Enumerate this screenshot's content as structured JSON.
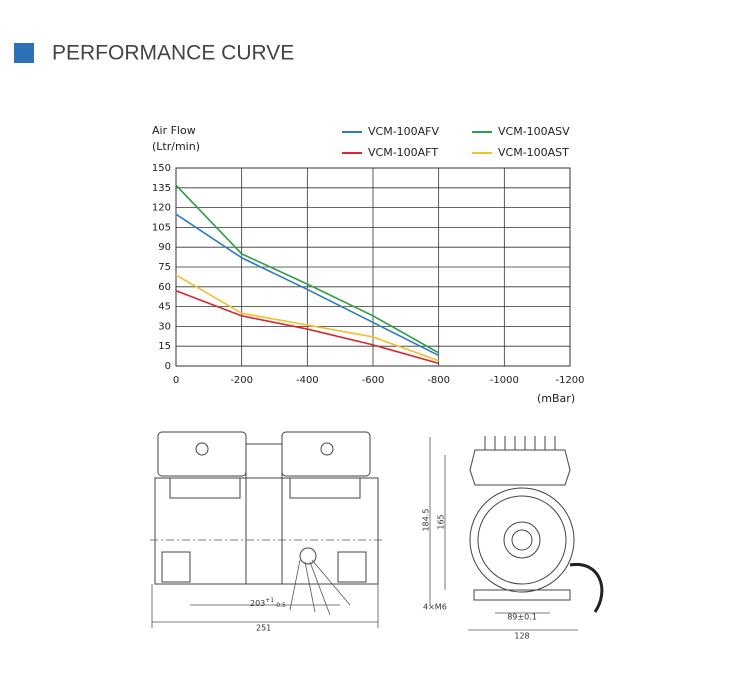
{
  "header": {
    "title": "PERFORMANCE CURVE"
  },
  "chart_data": {
    "type": "line",
    "y_label": "Air Flow",
    "y_unit": "(Ltr/min)",
    "x_label": "(mBar)",
    "x": [
      0,
      -200,
      -400,
      -600,
      -800
    ],
    "series": [
      {
        "name": "VCM-100AFV",
        "color": "#2e7bbf",
        "values": [
          115,
          82,
          58,
          33,
          8
        ]
      },
      {
        "name": "VCM-100ASV",
        "color": "#2e9e44",
        "values": [
          137,
          85,
          62,
          38,
          10
        ]
      },
      {
        "name": "VCM-100AFT",
        "color": "#d9272e",
        "values": [
          57,
          38,
          28,
          16,
          2
        ]
      },
      {
        "name": "VCM-100AST",
        "color": "#f0c030",
        "values": [
          69,
          40,
          31,
          22,
          4
        ]
      }
    ],
    "xlim": [
      0,
      -1200
    ],
    "xticks": [
      0,
      -200,
      -400,
      -600,
      -800,
      -1000,
      -1200
    ],
    "ylim": [
      0,
      150
    ],
    "yticks": [
      0,
      15,
      30,
      45,
      60,
      75,
      90,
      105,
      120,
      135,
      150
    ],
    "grid": true
  },
  "drawings": {
    "dim_203": "203",
    "dim_203_upper": "+1",
    "dim_203_lower": "-0.5",
    "dim_251": "251",
    "dim_184_5": "184.5",
    "dim_165": "165",
    "dim_4xm6": "4×M6",
    "dim_89": "89±0.1",
    "dim_128": "128"
  }
}
